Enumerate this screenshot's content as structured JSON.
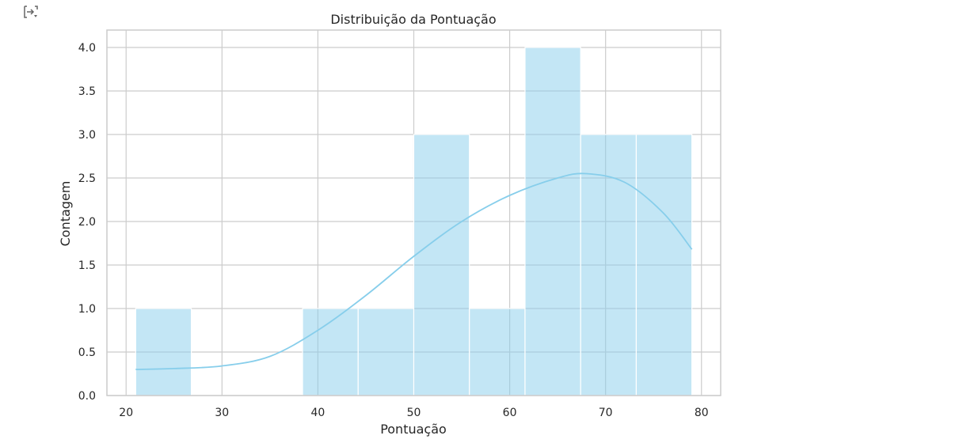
{
  "toolbar": {
    "icon": "output-toggle-icon"
  },
  "chart_data": {
    "type": "bar",
    "subtype": "histogram-with-kde",
    "title": "Distribuição da Pontuação",
    "xlabel": "Pontuação",
    "ylabel": "Contagem",
    "xlim": [
      18,
      82
    ],
    "ylim": [
      0,
      4.2
    ],
    "xticks": [
      20,
      30,
      40,
      50,
      60,
      70,
      80
    ],
    "yticks": [
      0.0,
      0.5,
      1.0,
      1.5,
      2.0,
      2.5,
      3.0,
      3.5,
      4.0
    ],
    "ytick_labels": [
      "0.0",
      "0.5",
      "1.0",
      "1.5",
      "2.0",
      "2.5",
      "3.0",
      "3.5",
      "4.0"
    ],
    "grid": true,
    "bins": [
      {
        "start": 21.0,
        "end": 26.8,
        "count": 1
      },
      {
        "start": 26.8,
        "end": 32.6,
        "count": 0
      },
      {
        "start": 32.6,
        "end": 38.4,
        "count": 0
      },
      {
        "start": 38.4,
        "end": 44.2,
        "count": 1
      },
      {
        "start": 44.2,
        "end": 50.0,
        "count": 1
      },
      {
        "start": 50.0,
        "end": 55.8,
        "count": 3
      },
      {
        "start": 55.8,
        "end": 61.6,
        "count": 1
      },
      {
        "start": 61.6,
        "end": 67.4,
        "count": 4
      },
      {
        "start": 67.4,
        "end": 73.2,
        "count": 3
      },
      {
        "start": 73.2,
        "end": 79.0,
        "count": 3
      }
    ],
    "kde": {
      "x": [
        21,
        25,
        30,
        35,
        40,
        45,
        50,
        55,
        60,
        65,
        68,
        72,
        76,
        79
      ],
      "y": [
        0.3,
        0.31,
        0.34,
        0.45,
        0.75,
        1.15,
        1.6,
        2.0,
        2.3,
        2.5,
        2.55,
        2.45,
        2.1,
        1.68
      ]
    },
    "colors": {
      "bar": "#87ceeb",
      "kde": "#87ceeb",
      "grid": "#cccccc",
      "spine": "#cccccc"
    }
  }
}
